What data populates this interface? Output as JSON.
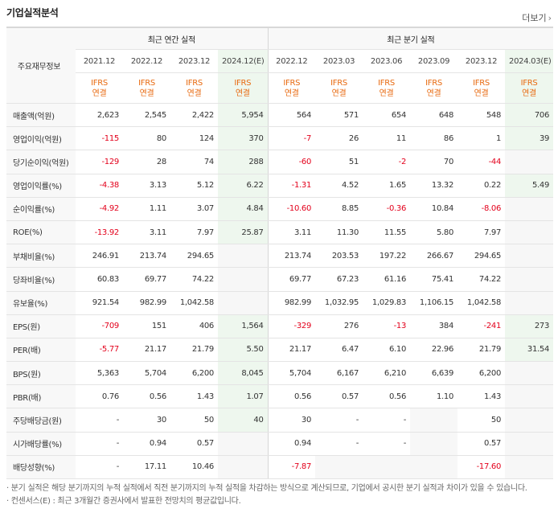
{
  "title": "기업실적분석",
  "more_label": "더보기",
  "header": {
    "row_label": "주요재무정보",
    "annual_group": "최근 연간 실적",
    "quarter_group": "최근 분기 실적",
    "annual_periods": [
      "2021.12",
      "2022.12",
      "2023.12",
      "2024.12(E)"
    ],
    "quarter_periods": [
      "2022.12",
      "2023.03",
      "2023.06",
      "2023.09",
      "2023.12",
      "2024.03(E)"
    ],
    "ifrs_line1": "IFRS",
    "ifrs_line2": "연결"
  },
  "rows": [
    {
      "label": "매출액(억원)",
      "annual": [
        "2,623",
        "2,545",
        "2,422",
        "5,954"
      ],
      "quarter": [
        "564",
        "571",
        "654",
        "648",
        "548",
        "706"
      ]
    },
    {
      "label": "영업이익(억원)",
      "annual": [
        "-115",
        "80",
        "124",
        "370"
      ],
      "quarter": [
        "-7",
        "26",
        "11",
        "86",
        "1",
        "39"
      ]
    },
    {
      "label": "당기순이익(억원)",
      "annual": [
        "-129",
        "28",
        "74",
        "288"
      ],
      "quarter": [
        "-60",
        "51",
        "-2",
        "70",
        "-44",
        ""
      ]
    },
    {
      "label": "영업이익률(%)",
      "annual": [
        "-4.38",
        "3.13",
        "5.12",
        "6.22"
      ],
      "quarter": [
        "-1.31",
        "4.52",
        "1.65",
        "13.32",
        "0.22",
        "5.49"
      ]
    },
    {
      "label": "순이익률(%)",
      "annual": [
        "-4.92",
        "1.11",
        "3.07",
        "4.84"
      ],
      "quarter": [
        "-10.60",
        "8.85",
        "-0.36",
        "10.84",
        "-8.06",
        ""
      ]
    },
    {
      "label": "ROE(%)",
      "annual": [
        "-13.92",
        "3.11",
        "7.97",
        "25.87"
      ],
      "quarter": [
        "3.11",
        "11.30",
        "11.55",
        "5.80",
        "7.97",
        ""
      ]
    },
    {
      "label": "부채비율(%)",
      "annual": [
        "246.91",
        "213.74",
        "294.65",
        ""
      ],
      "quarter": [
        "213.74",
        "203.53",
        "197.22",
        "266.67",
        "294.65",
        ""
      ]
    },
    {
      "label": "당좌비율(%)",
      "annual": [
        "60.83",
        "69.77",
        "74.22",
        ""
      ],
      "quarter": [
        "69.77",
        "67.23",
        "61.16",
        "75.41",
        "74.22",
        ""
      ]
    },
    {
      "label": "유보율(%)",
      "annual": [
        "921.54",
        "982.99",
        "1,042.58",
        ""
      ],
      "quarter": [
        "982.99",
        "1,032.95",
        "1,029.83",
        "1,106.15",
        "1,042.58",
        ""
      ]
    },
    {
      "label": "EPS(원)",
      "annual": [
        "-709",
        "151",
        "406",
        "1,564"
      ],
      "quarter": [
        "-329",
        "276",
        "-13",
        "384",
        "-241",
        "273"
      ]
    },
    {
      "label": "PER(배)",
      "annual": [
        "-5.77",
        "21.17",
        "21.79",
        "5.50"
      ],
      "quarter": [
        "21.17",
        "6.47",
        "6.10",
        "22.96",
        "21.79",
        "31.54"
      ]
    },
    {
      "label": "BPS(원)",
      "annual": [
        "5,363",
        "5,704",
        "6,200",
        "8,045"
      ],
      "quarter": [
        "5,704",
        "6,167",
        "6,210",
        "6,639",
        "6,200",
        ""
      ]
    },
    {
      "label": "PBR(배)",
      "annual": [
        "0.76",
        "0.56",
        "1.43",
        "1.07"
      ],
      "quarter": [
        "0.56",
        "0.57",
        "0.56",
        "1.10",
        "1.43",
        ""
      ]
    },
    {
      "label": "주당배당금(원)",
      "annual": [
        "-",
        "30",
        "50",
        "40"
      ],
      "quarter": [
        "30",
        "-",
        "-",
        "",
        "50",
        ""
      ]
    },
    {
      "label": "시가배당률(%)",
      "annual": [
        "-",
        "0.94",
        "0.57",
        ""
      ],
      "quarter": [
        "0.94",
        "-",
        "-",
        "",
        "0.57",
        ""
      ]
    },
    {
      "label": "배당성향(%)",
      "annual": [
        "-",
        "17.11",
        "10.46",
        ""
      ],
      "quarter": [
        "-7.87",
        "",
        "",
        "",
        "-17.60",
        ""
      ]
    }
  ],
  "notes": [
    "분기 실적은 해당 분기까지의 누적 실적에서 직전 분기까지의 누적 실적을 차감하는 방식으로 계산되므로, 기업에서 공시한 분기 실적과 차이가 있을 수 있습니다.",
    "컨센서스(E) : 최근 3개월간 증권사에서 발표한 전망치의 평균값입니다."
  ]
}
